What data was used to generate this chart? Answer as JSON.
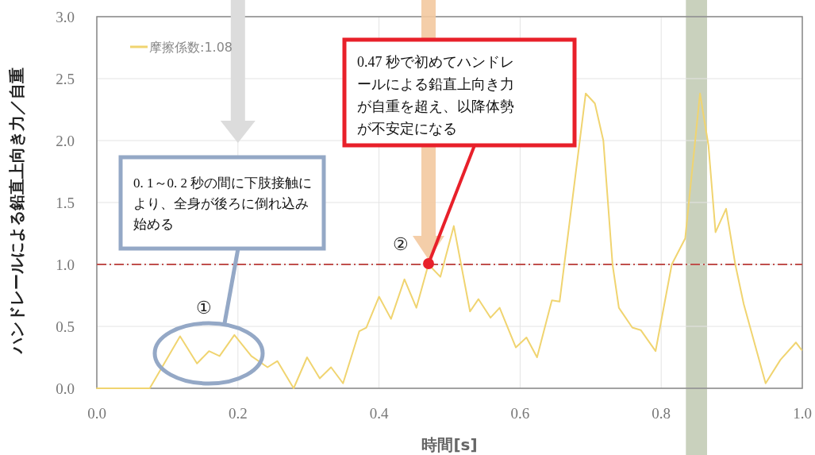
{
  "chart_data": {
    "type": "line",
    "xlabel": "時間[s]",
    "ylabel": "ハンドレールによる鉛直上向き力／自重",
    "x": [
      0,
      0.075,
      0.118,
      0.142,
      0.159,
      0.174,
      0.195,
      0.219,
      0.242,
      0.256,
      0.279,
      0.298,
      0.316,
      0.332,
      0.349,
      0.372,
      0.382,
      0.4,
      0.417,
      0.436,
      0.453,
      0.47,
      0.487,
      0.506,
      0.529,
      0.541,
      0.558,
      0.571,
      0.594,
      0.609,
      0.624,
      0.645,
      0.656,
      0.693,
      0.706,
      0.718,
      0.731,
      0.74,
      0.759,
      0.771,
      0.792,
      0.815,
      0.834,
      0.855,
      0.867,
      0.877,
      0.892,
      0.905,
      0.917,
      0.948,
      0.969,
      0.991,
      0.999
    ],
    "series": [
      {
        "name": "摩擦係数:1.08",
        "color": "#f0d470",
        "values": [
          0,
          0,
          0.42,
          0.2,
          0.3,
          0.26,
          0.43,
          0.26,
          0.17,
          0.22,
          0,
          0.25,
          0.08,
          0.17,
          0.04,
          0.46,
          0.49,
          0.74,
          0.56,
          0.88,
          0.65,
          1.0,
          0.9,
          1.31,
          0.62,
          0.72,
          0.57,
          0.65,
          0.33,
          0.41,
          0.25,
          0.71,
          0.7,
          2.38,
          2.3,
          2.0,
          1.0,
          0.65,
          0.49,
          0.47,
          0.3,
          1.0,
          1.21,
          2.38,
          1.96,
          1.26,
          1.45,
          1.0,
          0.68,
          0.04,
          0.23,
          0.37,
          0.31
        ]
      }
    ],
    "xlim": [
      0,
      1
    ],
    "ylim": [
      0,
      3
    ],
    "xticks": [
      {
        "value": 0,
        "label": "0.0"
      },
      0.2,
      0.4,
      0.6,
      0.8,
      {
        "value": 1,
        "label": "1.0"
      }
    ],
    "yticks": [
      {
        "value": 0,
        "label": "0.0"
      },
      0.5,
      {
        "value": 1,
        "label": "1.0"
      },
      1.5,
      {
        "value": 2,
        "label": "2.0"
      },
      2.5,
      {
        "value": 3,
        "label": "3.0"
      }
    ],
    "grid": true,
    "legend": "top left",
    "ref_lines": [
      {
        "axis": "y",
        "value": 1,
        "color": "#c0504d",
        "line_style": "dashdot"
      }
    ],
    "bands": [
      {
        "axis": "x",
        "from": 0.835,
        "to": 0.865,
        "color": "#c9d1bd"
      }
    ],
    "annotations": [
      "0. 1～0. 2 秒の間に下肢接触により、全身が後ろに倒れ込み始める",
      "①",
      "0.47 秒で初めてハンドレールによる鉛直上向き力が自重を超え、以降体勢が不安定になる",
      "②"
    ]
  }
}
